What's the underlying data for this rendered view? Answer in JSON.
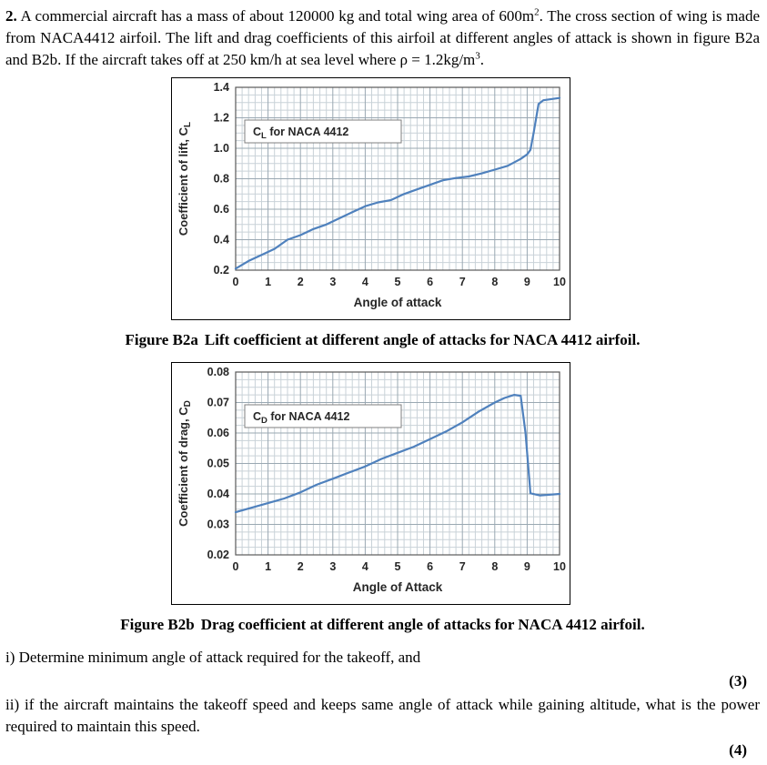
{
  "intro": {
    "number": "2.",
    "part1": " A commercial aircraft has a mass of about 120000 kg and total wing area of 600m",
    "sup1": "2",
    "part2": ". The cross section of wing is made from NACA4412 airfoil. The lift and drag coefficients of this airfoil at different angles of attack is shown in figure B2a and B2b. If the aircraft takes off at 250 km/h at sea level where ρ = 1.2kg/m",
    "sup2": "3",
    "part3": "."
  },
  "captions": {
    "b2a_label": "Figure B2a",
    "b2a_text": "Lift coefficient at different angle of attacks for NACA 4412 airfoil.",
    "b2b_label": "Figure B2b",
    "b2b_text": "Drag coefficient at different angle of attacks for NACA 4412 airfoil."
  },
  "questions": {
    "q1": "i) Determine minimum angle of attack required for the takeoff, and",
    "q1_marks": "(3)",
    "q2": "ii) if the aircraft maintains the takeoff speed and keeps same angle of attack while gaining altitude, what is the power required to maintain this speed.",
    "q2_marks": "(4)"
  },
  "colors": {
    "line": "#4f81bd",
    "minor_grid": "#c9d2d8",
    "major_grid": "#9aa8b2",
    "plot_border": "#595959",
    "text": "#262626"
  },
  "chart_data": [
    {
      "name": "lift-coefficient-chart",
      "type": "line",
      "legend": {
        "main": "C",
        "sub": "L",
        "rest": " for NACA 4412"
      },
      "xlabel": "Angle of attack",
      "ylabel": {
        "main": "Coefficient of lift, C",
        "sub": "L"
      },
      "xlim": [
        0,
        10
      ],
      "ylim": [
        0.2,
        1.4
      ],
      "x_major": 1,
      "x_minor": 0.2,
      "y_major": 0.2,
      "y_minor": 0.05,
      "y_decimals": 1,
      "grid": true,
      "legend_position": "top-left",
      "line_color": "#4f81bd",
      "x": [
        0,
        0.4,
        0.8,
        1.2,
        1.6,
        2,
        2.4,
        2.8,
        3.2,
        3.6,
        4,
        4.4,
        4.8,
        5.2,
        5.6,
        6,
        6.4,
        6.8,
        7.2,
        7.6,
        8,
        8.4,
        8.8,
        9.0,
        9.1,
        9.2,
        9.35,
        9.5,
        10
      ],
      "y": [
        0.21,
        0.26,
        0.3,
        0.34,
        0.4,
        0.43,
        0.47,
        0.5,
        0.54,
        0.58,
        0.62,
        0.645,
        0.66,
        0.7,
        0.73,
        0.76,
        0.79,
        0.805,
        0.815,
        0.835,
        0.86,
        0.885,
        0.93,
        0.96,
        0.99,
        1.1,
        1.29,
        1.315,
        1.33
      ]
    },
    {
      "name": "drag-coefficient-chart",
      "type": "line",
      "legend": {
        "main": "C",
        "sub": "D",
        "rest": " for NACA 4412"
      },
      "xlabel": "Angle of Attack",
      "ylabel": {
        "main": "Coefficient of drag, C",
        "sub": "D"
      },
      "xlim": [
        0,
        10
      ],
      "ylim": [
        0.02,
        0.08
      ],
      "x_major": 1,
      "x_minor": 0.2,
      "y_major": 0.01,
      "y_minor": 0.0025,
      "y_decimals": 2,
      "grid": true,
      "legend_position": "top-left",
      "line_color": "#4f81bd",
      "x": [
        0,
        0.5,
        1,
        1.5,
        2,
        2.5,
        3,
        3.5,
        4,
        4.5,
        5,
        5.5,
        6,
        6.5,
        7,
        7.5,
        8,
        8.3,
        8.6,
        8.8,
        8.95,
        9.1,
        9.4,
        10
      ],
      "y": [
        0.034,
        0.0355,
        0.037,
        0.0385,
        0.0405,
        0.043,
        0.045,
        0.047,
        0.049,
        0.0515,
        0.0535,
        0.0555,
        0.058,
        0.0605,
        0.0635,
        0.067,
        0.07,
        0.0715,
        0.0725,
        0.0722,
        0.06,
        0.0402,
        0.0395,
        0.04
      ]
    }
  ]
}
